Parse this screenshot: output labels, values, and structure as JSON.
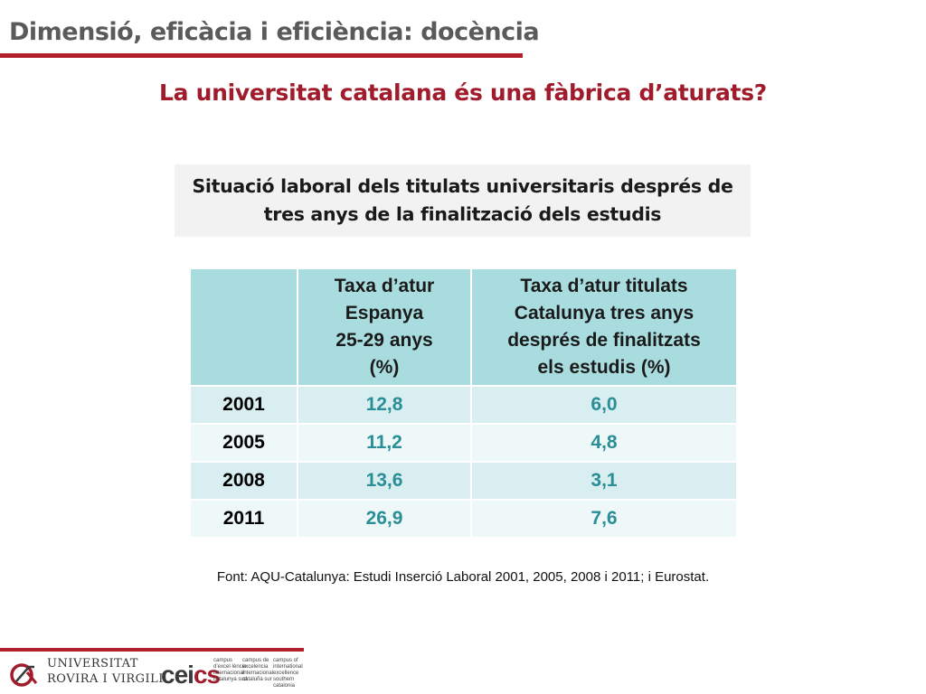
{
  "header": {
    "title": "Dimensió, eficàcia i eficiència: docència"
  },
  "main_title": "La universitat catalana és una fàbrica d’aturats?",
  "subtitle": {
    "line1": "Situació laboral dels titulats universitaris després de",
    "line2": "tres anys de la finalització dels estudis"
  },
  "table": {
    "headers": {
      "col1": [
        "Taxa d’atur",
        "Espanya",
        "25-29 anys",
        "(%)"
      ],
      "col2": [
        "Taxa d’atur titulats",
        "Catalunya tres anys",
        "després de finalitzats",
        "els estudis (%)"
      ]
    },
    "rows": [
      {
        "year": "2001",
        "spain": "12,8",
        "catalonia": "6,0"
      },
      {
        "year": "2005",
        "spain": "11,2",
        "catalonia": "4,8"
      },
      {
        "year": "2008",
        "spain": "13,6",
        "catalonia": "3,1"
      },
      {
        "year": "2011",
        "spain": "26,9",
        "catalonia": "7,6"
      }
    ]
  },
  "source": "Font: AQU-Catalunya: Estudi Inserció Laboral 2001, 2005, 2008 i 2011; i Eurostat.",
  "footer": {
    "university_line1": "Universitat",
    "university_line2": "Rovira i Virgili",
    "cei_text": "cei",
    "cei_accent": "cs",
    "campus_text_1": "campus d’excel·lència internacional catalunya sud",
    "campus_text_2": "campus de excelencia internacional cataluña sur",
    "campus_text_3": "campus of international excellence southern catalonia"
  },
  "colors": {
    "brand_red": "#a01c2c",
    "rule_red": "#b0202a",
    "header_teal": "#a9dcdf",
    "value_teal": "#2a8e97"
  }
}
